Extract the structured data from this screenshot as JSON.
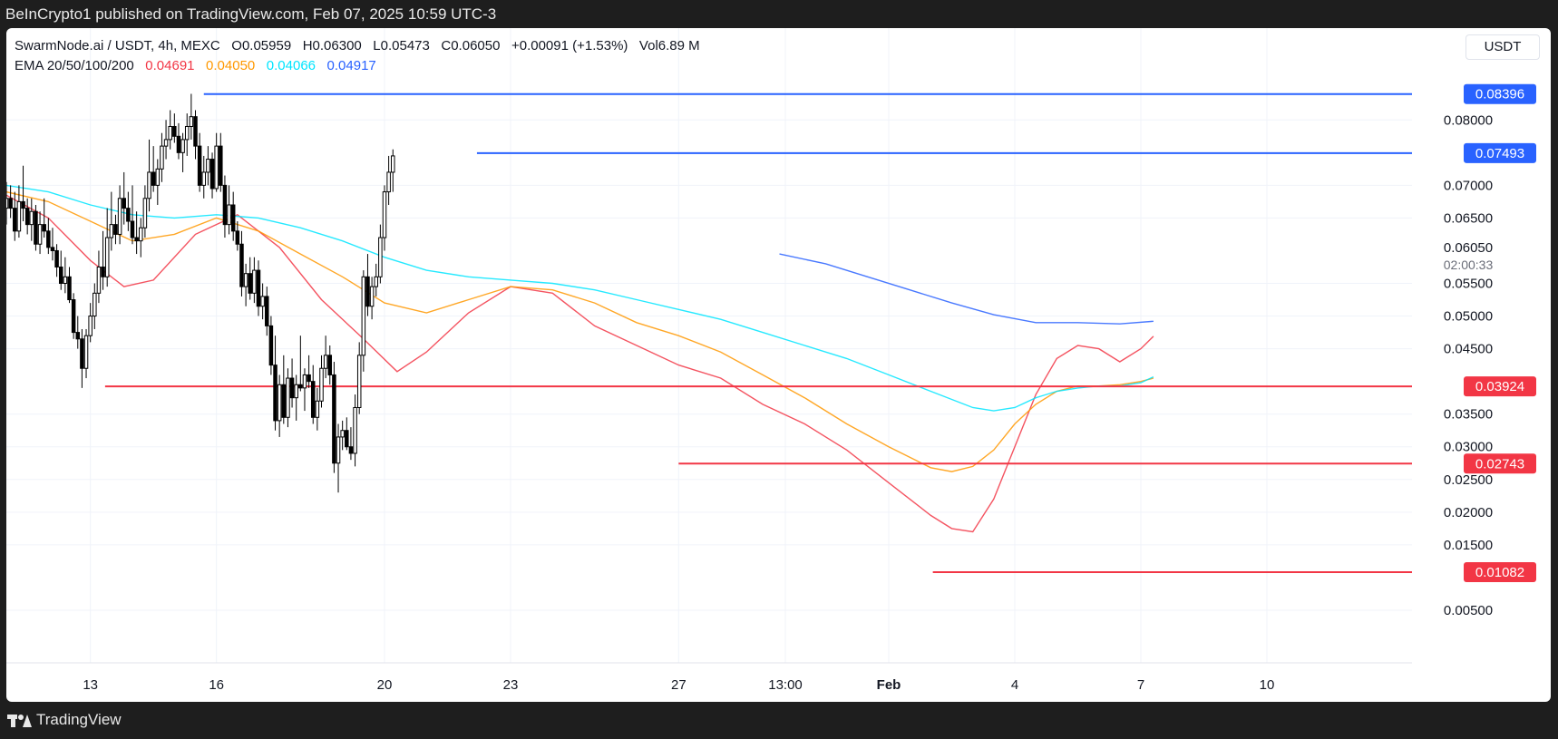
{
  "header": {
    "publisher": "BeInCrypto1 published on TradingView.com, Feb 07, 2025 10:59 UTC-3"
  },
  "footer": {
    "brand": "TradingView"
  },
  "symbol_legend": {
    "symbol": "SwarmNode.ai / USDT, 4h, MEXC",
    "open_label": "O",
    "open": "0.05959",
    "high_label": "H",
    "high": "0.06300",
    "low_label": "L",
    "low": "0.05473",
    "close_label": "C",
    "close": "0.06050",
    "change": "+0.00091 (+1.53%)",
    "vol_label": "Vol",
    "vol": "6.89 M"
  },
  "ema_legend": {
    "label": "EMA 20/50/100/200",
    "ema20": "0.04691",
    "ema50": "0.04050",
    "ema100": "0.04066",
    "ema200": "0.04917"
  },
  "currency_button": "USDT",
  "countdown": "02:00:33",
  "colors": {
    "ema20": "#f23645",
    "ema50": "#ff9800",
    "ema100": "#00e5ff",
    "ema200": "#2962ff",
    "resistance": "#2962ff",
    "support": "#f23645",
    "candle_up_fill": "#ffffff",
    "candle_down_fill": "#000000"
  },
  "chart_data": {
    "type": "candlestick",
    "symbol": "SwarmNode.ai / USDT",
    "interval": "4h",
    "exchange": "MEXC",
    "ylim": [
      0.0025,
      0.0885
    ],
    "y_ticks": [
      "0.00500",
      "0.01500",
      "0.02000",
      "0.02500",
      "0.03000",
      "0.03500",
      "0.04500",
      "0.05000",
      "0.05500",
      "0.06500",
      "0.07000",
      "0.08000"
    ],
    "x_ticks": [
      {
        "label": "13",
        "day": 13
      },
      {
        "label": "16",
        "day": 16
      },
      {
        "label": "20",
        "day": 20
      },
      {
        "label": "23",
        "day": 23
      },
      {
        "label": "27",
        "day": 27
      },
      {
        "label": "13:00",
        "day": 29.54
      },
      {
        "label": "Feb",
        "day": 32
      },
      {
        "label": "4",
        "day": 35
      },
      {
        "label": "7",
        "day": 38
      },
      {
        "label": "10",
        "day": 41
      }
    ],
    "current_price": 0.0605,
    "levels": [
      {
        "label": "0.08396",
        "value": 0.08396,
        "kind": "resistance",
        "start_day": 15.7
      },
      {
        "label": "0.07493",
        "value": 0.07493,
        "kind": "resistance",
        "start_day": 22.2
      },
      {
        "label": "0.03924",
        "value": 0.03924,
        "kind": "support",
        "start_day": 13.35
      },
      {
        "label": "0.02743",
        "value": 0.02743,
        "kind": "support",
        "start_day": 27.0
      },
      {
        "label": "0.01082",
        "value": 0.01082,
        "kind": "support",
        "start_day": 33.05
      }
    ],
    "ema_series": [
      {
        "name": "EMA 20",
        "x": [
          11.0,
          12.0,
          13.0,
          13.8,
          14.5,
          15.5,
          16.5,
          17.5,
          18.5,
          19.5,
          20.3,
          21.0,
          22.0,
          23.0,
          24.0,
          25.0,
          26.0,
          27.0,
          28.0,
          29.0,
          30.0,
          31.0,
          32.0,
          33.0,
          33.5,
          34.0,
          34.5,
          35.0,
          35.5,
          36.0,
          36.5,
          37.0,
          37.5,
          38.0,
          38.3
        ],
        "y": [
          0.0685,
          0.065,
          0.0585,
          0.0545,
          0.0555,
          0.0625,
          0.0655,
          0.0605,
          0.0525,
          0.0465,
          0.0415,
          0.0445,
          0.0505,
          0.0545,
          0.0535,
          0.0485,
          0.0455,
          0.0425,
          0.0405,
          0.0365,
          0.0335,
          0.0295,
          0.0245,
          0.0195,
          0.0175,
          0.017,
          0.022,
          0.03,
          0.038,
          0.0435,
          0.0455,
          0.045,
          0.043,
          0.045,
          0.0469
        ]
      },
      {
        "name": "EMA 50",
        "x": [
          11.0,
          12.0,
          13.0,
          14.0,
          15.0,
          16.0,
          17.0,
          18.0,
          19.0,
          20.0,
          21.0,
          22.0,
          23.0,
          24.0,
          25.0,
          26.0,
          27.0,
          28.0,
          29.0,
          30.0,
          31.0,
          32.0,
          33.0,
          33.5,
          34.0,
          34.5,
          35.0,
          35.5,
          36.0,
          36.5,
          37.0,
          37.5,
          38.0,
          38.3
        ],
        "y": [
          0.069,
          0.0675,
          0.0645,
          0.0615,
          0.0625,
          0.065,
          0.063,
          0.0595,
          0.056,
          0.052,
          0.0505,
          0.0525,
          0.0545,
          0.054,
          0.052,
          0.049,
          0.047,
          0.0445,
          0.041,
          0.0375,
          0.0335,
          0.03,
          0.0268,
          0.0262,
          0.027,
          0.0295,
          0.0335,
          0.0365,
          0.0385,
          0.0393,
          0.0393,
          0.0395,
          0.04,
          0.0405
        ]
      },
      {
        "name": "EMA 100",
        "x": [
          11.0,
          12.0,
          13.0,
          14.0,
          15.0,
          16.0,
          17.0,
          18.0,
          19.0,
          20.0,
          21.0,
          22.0,
          23.0,
          24.0,
          25.0,
          26.0,
          27.0,
          28.0,
          29.0,
          30.0,
          31.0,
          32.0,
          33.0,
          34.0,
          34.5,
          35.0,
          35.5,
          36.0,
          36.5,
          37.0,
          37.5,
          38.0,
          38.3
        ],
        "y": [
          0.07,
          0.069,
          0.067,
          0.0655,
          0.065,
          0.0655,
          0.065,
          0.0635,
          0.0615,
          0.059,
          0.057,
          0.056,
          0.0555,
          0.055,
          0.054,
          0.0525,
          0.051,
          0.0495,
          0.0475,
          0.0455,
          0.0435,
          0.041,
          0.0385,
          0.036,
          0.0355,
          0.036,
          0.0375,
          0.0385,
          0.039,
          0.0393,
          0.0393,
          0.0398,
          0.0407
        ]
      },
      {
        "name": "EMA 200",
        "x": [
          29.4,
          30.5,
          31.5,
          32.5,
          33.5,
          34.5,
          35.5,
          36.5,
          37.5,
          38.3
        ],
        "y": [
          0.0595,
          0.058,
          0.056,
          0.054,
          0.052,
          0.0502,
          0.049,
          0.049,
          0.0488,
          0.0492
        ]
      }
    ],
    "candles": {
      "fields": [
        "day",
        "open",
        "high",
        "low",
        "close"
      ],
      "data": [
        [
          11.0,
          0.0665,
          0.0705,
          0.064,
          0.068
        ],
        [
          11.1,
          0.068,
          0.07,
          0.065,
          0.0665
        ],
        [
          11.2,
          0.0665,
          0.069,
          0.0615,
          0.063
        ],
        [
          11.3,
          0.063,
          0.07,
          0.062,
          0.0675
        ],
        [
          11.4,
          0.0675,
          0.073,
          0.0645,
          0.0665
        ],
        [
          11.5,
          0.0665,
          0.068,
          0.0625,
          0.064
        ],
        [
          11.6,
          0.064,
          0.068,
          0.0615,
          0.066
        ],
        [
          11.7,
          0.066,
          0.067,
          0.06,
          0.061
        ],
        [
          11.8,
          0.061,
          0.066,
          0.0595,
          0.064
        ],
        [
          11.9,
          0.064,
          0.068,
          0.062,
          0.063
        ],
        [
          12.0,
          0.063,
          0.065,
          0.0595,
          0.0605
        ],
        [
          12.1,
          0.0605,
          0.0635,
          0.0585,
          0.06
        ],
        [
          12.2,
          0.06,
          0.061,
          0.056,
          0.0575
        ],
        [
          12.3,
          0.0575,
          0.06,
          0.054,
          0.055
        ],
        [
          12.4,
          0.055,
          0.059,
          0.0535,
          0.056
        ],
        [
          12.5,
          0.056,
          0.0575,
          0.052,
          0.0525
        ],
        [
          12.6,
          0.0525,
          0.0535,
          0.0465,
          0.0475
        ],
        [
          12.7,
          0.0475,
          0.05,
          0.045,
          0.0465
        ],
        [
          12.8,
          0.0465,
          0.048,
          0.039,
          0.042
        ],
        [
          12.9,
          0.042,
          0.048,
          0.0405,
          0.047
        ],
        [
          13.0,
          0.047,
          0.052,
          0.046,
          0.05
        ],
        [
          13.1,
          0.05,
          0.055,
          0.048,
          0.0535
        ],
        [
          13.2,
          0.0535,
          0.06,
          0.052,
          0.0575
        ],
        [
          13.3,
          0.0575,
          0.063,
          0.054,
          0.056
        ],
        [
          13.4,
          0.056,
          0.0665,
          0.0545,
          0.062
        ],
        [
          13.5,
          0.062,
          0.069,
          0.06,
          0.064
        ],
        [
          13.6,
          0.064,
          0.0655,
          0.061,
          0.0625
        ],
        [
          13.7,
          0.0625,
          0.07,
          0.061,
          0.068
        ],
        [
          13.8,
          0.068,
          0.072,
          0.064,
          0.0665
        ],
        [
          13.9,
          0.0665,
          0.069,
          0.063,
          0.0645
        ],
        [
          14.0,
          0.0645,
          0.07,
          0.061,
          0.062
        ],
        [
          14.1,
          0.062,
          0.066,
          0.0595,
          0.0615
        ],
        [
          14.2,
          0.0615,
          0.065,
          0.059,
          0.0635
        ],
        [
          14.3,
          0.0635,
          0.07,
          0.062,
          0.068
        ],
        [
          14.4,
          0.068,
          0.077,
          0.066,
          0.072
        ],
        [
          14.5,
          0.072,
          0.076,
          0.069,
          0.07
        ],
        [
          14.6,
          0.07,
          0.074,
          0.067,
          0.0725
        ],
        [
          14.7,
          0.0725,
          0.078,
          0.0705,
          0.076
        ],
        [
          14.8,
          0.076,
          0.08,
          0.074,
          0.077
        ],
        [
          14.9,
          0.077,
          0.0815,
          0.0755,
          0.079
        ],
        [
          15.0,
          0.079,
          0.081,
          0.0765,
          0.0775
        ],
        [
          15.1,
          0.0775,
          0.0795,
          0.074,
          0.075
        ],
        [
          15.2,
          0.075,
          0.078,
          0.072,
          0.077
        ],
        [
          15.3,
          0.077,
          0.081,
          0.0745,
          0.079
        ],
        [
          15.4,
          0.079,
          0.084,
          0.077,
          0.0805
        ],
        [
          15.5,
          0.0805,
          0.0815,
          0.074,
          0.076
        ],
        [
          15.6,
          0.076,
          0.078,
          0.069,
          0.07
        ],
        [
          15.7,
          0.07,
          0.0745,
          0.068,
          0.072
        ],
        [
          15.8,
          0.072,
          0.076,
          0.07,
          0.074
        ],
        [
          15.9,
          0.074,
          0.075,
          0.068,
          0.0695
        ],
        [
          16.0,
          0.0695,
          0.078,
          0.069,
          0.076
        ],
        [
          16.1,
          0.076,
          0.078,
          0.069,
          0.07
        ],
        [
          16.2,
          0.07,
          0.0715,
          0.062,
          0.064
        ],
        [
          16.3,
          0.064,
          0.07,
          0.0625,
          0.067
        ],
        [
          16.4,
          0.067,
          0.069,
          0.0615,
          0.063
        ],
        [
          16.5,
          0.063,
          0.0645,
          0.06,
          0.061
        ],
        [
          16.6,
          0.061,
          0.063,
          0.053,
          0.0545
        ],
        [
          16.7,
          0.0545,
          0.058,
          0.0515,
          0.0565
        ],
        [
          16.8,
          0.0565,
          0.059,
          0.0525,
          0.0535
        ],
        [
          16.9,
          0.0535,
          0.059,
          0.052,
          0.057
        ],
        [
          17.0,
          0.057,
          0.0585,
          0.05,
          0.0515
        ],
        [
          17.1,
          0.0515,
          0.055,
          0.0495,
          0.053
        ],
        [
          17.2,
          0.053,
          0.0545,
          0.047,
          0.0485
        ],
        [
          17.3,
          0.0485,
          0.05,
          0.041,
          0.0425
        ],
        [
          17.4,
          0.0425,
          0.047,
          0.0325,
          0.034
        ],
        [
          17.5,
          0.034,
          0.041,
          0.0315,
          0.0395
        ],
        [
          17.6,
          0.0395,
          0.044,
          0.0335,
          0.0345
        ],
        [
          17.7,
          0.0345,
          0.042,
          0.033,
          0.0405
        ],
        [
          17.8,
          0.0405,
          0.0435,
          0.036,
          0.0375
        ],
        [
          17.9,
          0.0375,
          0.041,
          0.034,
          0.0395
        ],
        [
          18.0,
          0.0395,
          0.047,
          0.0385,
          0.039
        ],
        [
          18.1,
          0.039,
          0.042,
          0.0355,
          0.041
        ],
        [
          18.2,
          0.041,
          0.044,
          0.039,
          0.04
        ],
        [
          18.3,
          0.04,
          0.0425,
          0.0335,
          0.0345
        ],
        [
          18.4,
          0.0345,
          0.039,
          0.0325,
          0.037
        ],
        [
          18.5,
          0.037,
          0.044,
          0.036,
          0.042
        ],
        [
          18.6,
          0.042,
          0.047,
          0.0405,
          0.044
        ],
        [
          18.7,
          0.044,
          0.0455,
          0.0395,
          0.041
        ],
        [
          18.8,
          0.041,
          0.043,
          0.026,
          0.0275
        ],
        [
          18.9,
          0.0275,
          0.0335,
          0.023,
          0.0315
        ],
        [
          19.0,
          0.0315,
          0.034,
          0.0295,
          0.0325
        ],
        [
          19.1,
          0.0325,
          0.0345,
          0.0295,
          0.03
        ],
        [
          19.2,
          0.03,
          0.033,
          0.028,
          0.029
        ],
        [
          19.3,
          0.029,
          0.038,
          0.027,
          0.036
        ],
        [
          19.4,
          0.036,
          0.046,
          0.035,
          0.044
        ],
        [
          19.5,
          0.044,
          0.057,
          0.0415,
          0.056
        ],
        [
          19.6,
          0.056,
          0.0595,
          0.05,
          0.0515
        ],
        [
          19.7,
          0.0515,
          0.056,
          0.0495,
          0.0545
        ],
        [
          19.8,
          0.0545,
          0.058,
          0.053,
          0.056
        ],
        [
          19.9,
          0.056,
          0.064,
          0.055,
          0.062
        ],
        [
          20.0,
          0.062,
          0.07,
          0.06,
          0.069
        ],
        [
          20.1,
          0.069,
          0.0745,
          0.067,
          0.072
        ],
        [
          20.2,
          0.072,
          0.0755,
          0.069,
          0.0745
        ]
      ]
    }
  }
}
